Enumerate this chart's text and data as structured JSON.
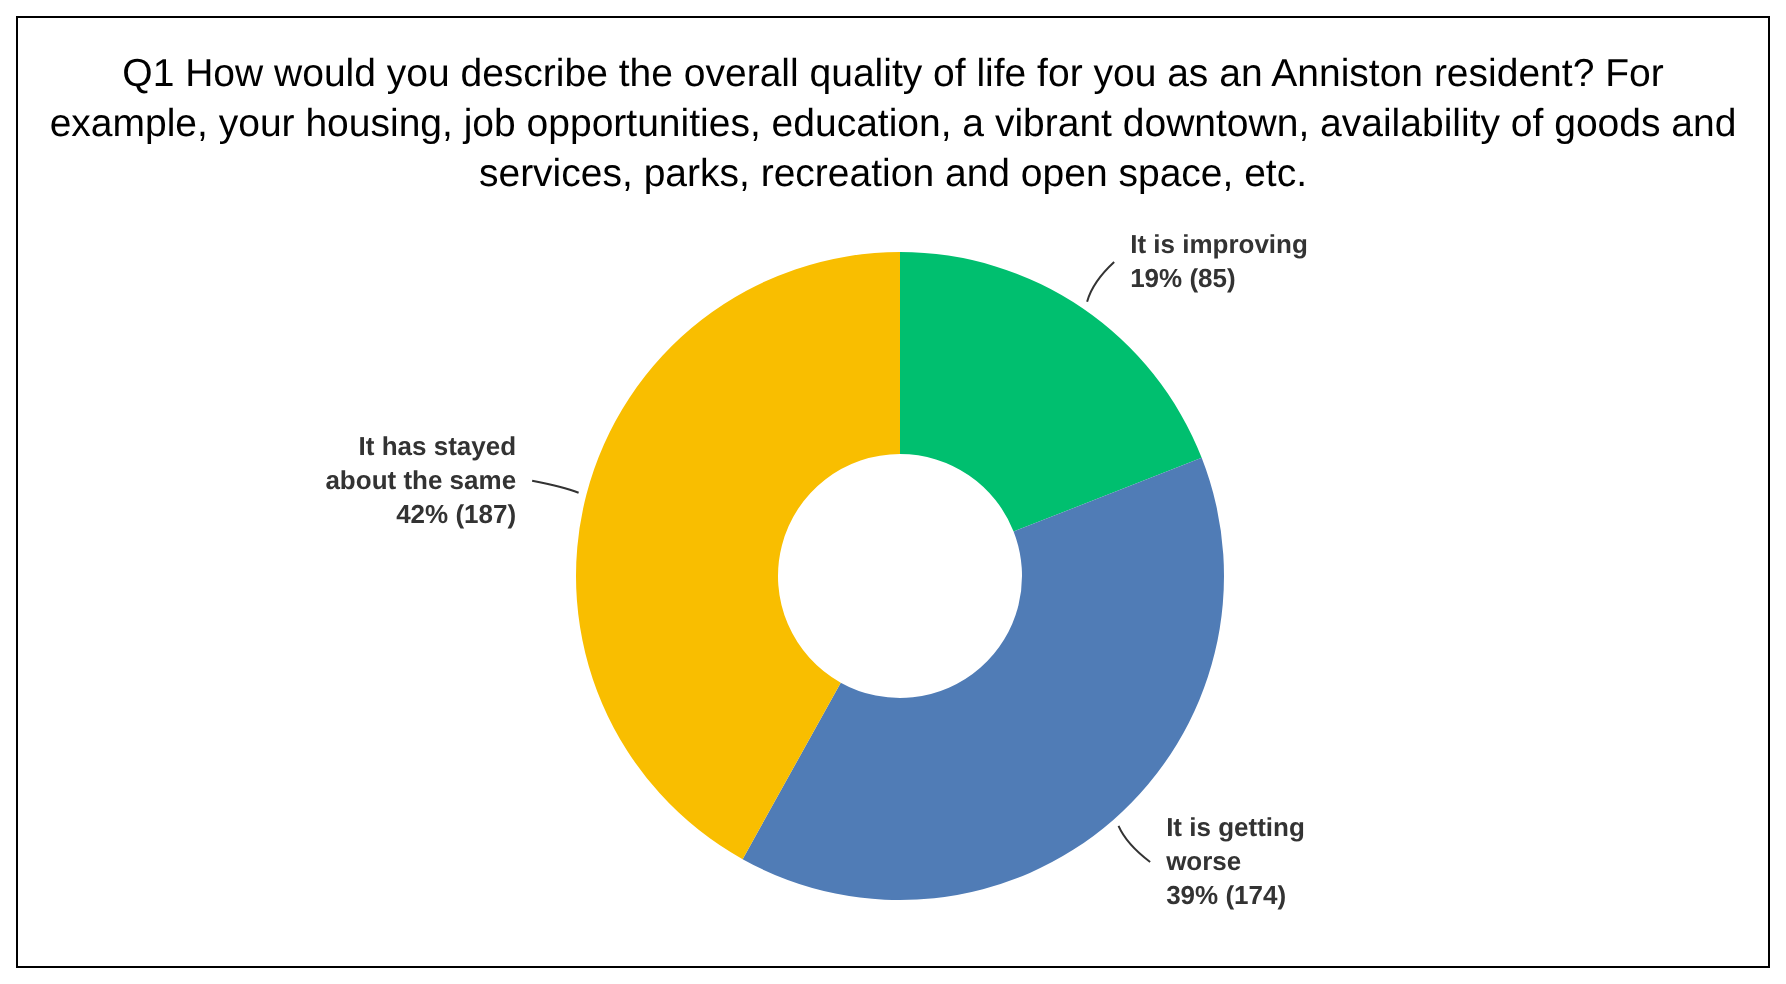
{
  "chart_data": {
    "type": "donut",
    "title": "Q1 How would you describe the overall quality of life for you as an Anniston resident?  For example, your housing, job opportunities, education, a vibrant downtown, availability of goods and services, parks, recreation and open space, etc.",
    "categories": [
      "It is improving",
      "It is getting worse",
      "It has stayed about the same"
    ],
    "values": [
      85,
      174,
      187
    ],
    "colors": [
      "#00bf6f",
      "#507cb6",
      "#f9be00"
    ],
    "value_labels": [
      "19% (85)",
      "39% (174)",
      "42% (187)"
    ]
  }
}
